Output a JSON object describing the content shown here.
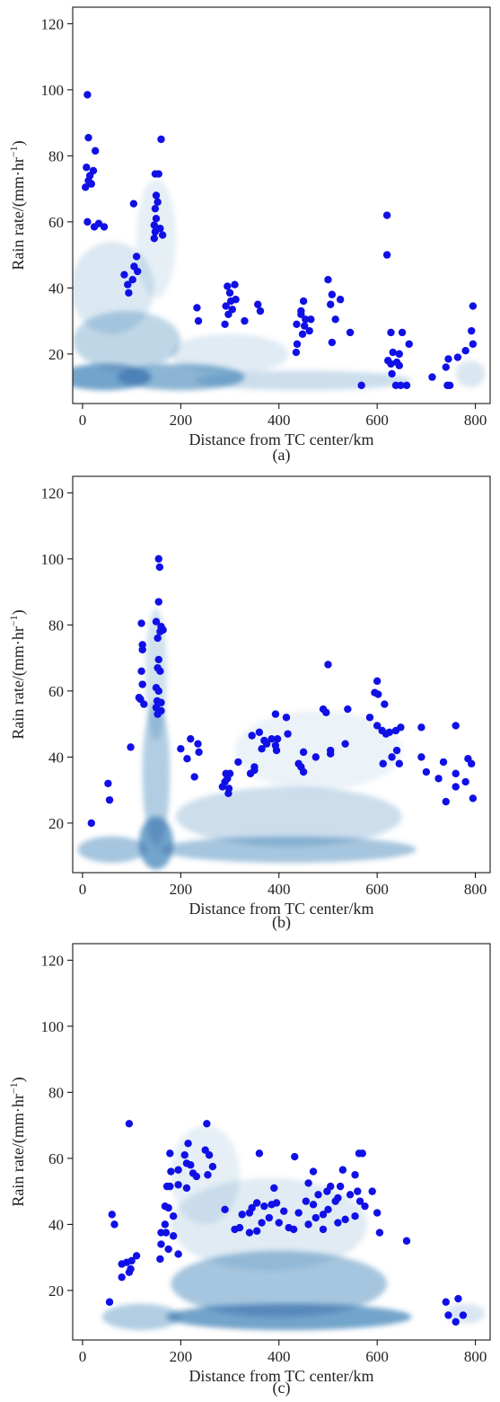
{
  "chart_data": [
    {
      "type": "scatter",
      "panel_label": "(a)",
      "xlabel": "Distance from TC center/km",
      "ylabel_main": "Rain rate/(mm·hr",
      "ylabel_sup": "−1",
      "ylabel_end": ")",
      "xlim": [
        -20,
        830
      ],
      "ylim": [
        5,
        125
      ],
      "xticks": [
        0,
        200,
        400,
        600,
        800
      ],
      "yticks": [
        20,
        40,
        60,
        80,
        100,
        120
      ],
      "grid": false,
      "legend": "none",
      "point_color": "#1010e6",
      "density_color": "#0b5aa0",
      "density": [
        {
          "x": 45,
          "y": 13,
          "sx": 95,
          "sy": 4,
          "a": 0.55
        },
        {
          "x": 200,
          "y": 13,
          "sx": 130,
          "sy": 4,
          "a": 0.45
        },
        {
          "x": 450,
          "y": 12,
          "sx": 220,
          "sy": 3,
          "a": 0.2
        },
        {
          "x": 90,
          "y": 24,
          "sx": 110,
          "sy": 9,
          "a": 0.25
        },
        {
          "x": 60,
          "y": 40,
          "sx": 85,
          "sy": 14,
          "a": 0.14
        },
        {
          "x": 150,
          "y": 55,
          "sx": 40,
          "sy": 18,
          "a": 0.1
        },
        {
          "x": 300,
          "y": 20,
          "sx": 120,
          "sy": 6,
          "a": 0.12
        },
        {
          "x": 790,
          "y": 14,
          "sx": 30,
          "sy": 4,
          "a": 0.15
        }
      ],
      "points": [
        [
          10,
          98.5
        ],
        [
          12,
          85.5
        ],
        [
          26,
          81.5
        ],
        [
          8,
          76.5
        ],
        [
          22,
          75.5
        ],
        [
          15,
          74
        ],
        [
          12,
          72.5
        ],
        [
          18,
          71.5
        ],
        [
          6,
          70.5
        ],
        [
          10,
          60
        ],
        [
          33,
          59.5
        ],
        [
          24,
          58.5
        ],
        [
          44,
          58.5
        ],
        [
          160,
          85
        ],
        [
          148,
          74.5
        ],
        [
          155,
          74.5
        ],
        [
          150,
          68
        ],
        [
          153,
          66
        ],
        [
          148,
          64
        ],
        [
          150,
          61
        ],
        [
          146,
          59
        ],
        [
          158,
          58
        ],
        [
          148,
          57
        ],
        [
          163,
          56
        ],
        [
          146,
          55
        ],
        [
          104,
          65.5
        ],
        [
          110,
          49.5
        ],
        [
          105,
          46.5
        ],
        [
          112,
          45
        ],
        [
          85,
          44
        ],
        [
          102,
          42.5
        ],
        [
          92,
          41
        ],
        [
          94,
          38.5
        ],
        [
          233,
          34
        ],
        [
          236,
          30
        ],
        [
          295,
          40.5
        ],
        [
          310,
          41
        ],
        [
          300,
          38.5
        ],
        [
          302,
          36
        ],
        [
          312,
          36.5
        ],
        [
          292,
          34.5
        ],
        [
          305,
          33.5
        ],
        [
          297,
          32
        ],
        [
          290,
          29
        ],
        [
          330,
          30
        ],
        [
          357,
          35
        ],
        [
          362,
          33
        ],
        [
          500,
          42.5
        ],
        [
          450,
          36
        ],
        [
          508,
          38
        ],
        [
          525,
          36.5
        ],
        [
          445,
          33
        ],
        [
          445,
          32
        ],
        [
          454,
          30.5
        ],
        [
          465,
          30.5
        ],
        [
          436,
          29
        ],
        [
          505,
          35
        ],
        [
          515,
          30.5
        ],
        [
          452,
          28.5
        ],
        [
          462,
          27
        ],
        [
          545,
          26.5
        ],
        [
          448,
          26
        ],
        [
          437,
          23
        ],
        [
          508,
          23.5
        ],
        [
          435,
          20.5
        ],
        [
          620,
          62
        ],
        [
          620,
          50
        ],
        [
          628,
          26.5
        ],
        [
          651,
          26.5
        ],
        [
          665,
          23
        ],
        [
          632,
          20.5
        ],
        [
          645,
          20
        ],
        [
          622,
          18
        ],
        [
          640,
          17.5
        ],
        [
          628,
          17
        ],
        [
          645,
          16.5
        ],
        [
          630,
          14
        ],
        [
          568,
          10.5
        ],
        [
          638,
          10.5
        ],
        [
          648,
          10.5
        ],
        [
          660,
          10.5
        ],
        [
          795,
          34.5
        ],
        [
          792,
          27
        ],
        [
          795,
          23
        ],
        [
          780,
          21
        ],
        [
          764,
          19
        ],
        [
          745,
          18.5
        ],
        [
          740,
          16
        ],
        [
          712,
          13
        ],
        [
          748,
          10.5
        ],
        [
          743,
          10.5
        ]
      ]
    },
    {
      "type": "scatter",
      "panel_label": "(b)",
      "xlabel": "Distance from TC center/km",
      "ylabel_main": "Rain rate/(mm·hr",
      "ylabel_sup": "−1",
      "ylabel_end": ")",
      "xlim": [
        -20,
        830
      ],
      "ylim": [
        5,
        125
      ],
      "xticks": [
        0,
        200,
        400,
        600,
        800
      ],
      "yticks": [
        20,
        40,
        60,
        80,
        100,
        120
      ],
      "grid": false,
      "legend": "none",
      "point_color": "#1010e6",
      "density_color": "#0b5aa0",
      "density": [
        {
          "x": 150,
          "y": 14,
          "sx": 35,
          "sy": 8,
          "a": 0.55
        },
        {
          "x": 150,
          "y": 35,
          "sx": 28,
          "sy": 22,
          "a": 0.3
        },
        {
          "x": 150,
          "y": 65,
          "sx": 22,
          "sy": 20,
          "a": 0.18
        },
        {
          "x": 60,
          "y": 12,
          "sx": 70,
          "sy": 4,
          "a": 0.35
        },
        {
          "x": 420,
          "y": 12,
          "sx": 260,
          "sy": 4,
          "a": 0.35
        },
        {
          "x": 420,
          "y": 22,
          "sx": 230,
          "sy": 9,
          "a": 0.2
        },
        {
          "x": 480,
          "y": 42,
          "sx": 170,
          "sy": 12,
          "a": 0.08
        }
      ],
      "points": [
        [
          155,
          100
        ],
        [
          157,
          97.5
        ],
        [
          155,
          87
        ],
        [
          150,
          81
        ],
        [
          160,
          79.5
        ],
        [
          158,
          78
        ],
        [
          164,
          78.5
        ],
        [
          153,
          76
        ],
        [
          120,
          80.5
        ],
        [
          122,
          74
        ],
        [
          122,
          72.5
        ],
        [
          155,
          69.5
        ],
        [
          153,
          67
        ],
        [
          158,
          66
        ],
        [
          120,
          66
        ],
        [
          150,
          61
        ],
        [
          155,
          60
        ],
        [
          122,
          62
        ],
        [
          115,
          58
        ],
        [
          118,
          57.5
        ],
        [
          152,
          57
        ],
        [
          160,
          56.5
        ],
        [
          125,
          56
        ],
        [
          150,
          55
        ],
        [
          160,
          54
        ],
        [
          153,
          53
        ],
        [
          98,
          43
        ],
        [
          52,
          32
        ],
        [
          55,
          27
        ],
        [
          18,
          20
        ],
        [
          200,
          42.5
        ],
        [
          220,
          45.5
        ],
        [
          235,
          44
        ],
        [
          213,
          39.5
        ],
        [
          237,
          41.5
        ],
        [
          228,
          34
        ],
        [
          292,
          35
        ],
        [
          295,
          33.5
        ],
        [
          300,
          35
        ],
        [
          290,
          32.5
        ],
        [
          285,
          31
        ],
        [
          298,
          30.5
        ],
        [
          297,
          29
        ],
        [
          317,
          38.5
        ],
        [
          345,
          46.5
        ],
        [
          360,
          47.5
        ],
        [
          385,
          45.5
        ],
        [
          370,
          45
        ],
        [
          393,
          53
        ],
        [
          397,
          45.5
        ],
        [
          375,
          44
        ],
        [
          393,
          43.5
        ],
        [
          365,
          42.5
        ],
        [
          395,
          42
        ],
        [
          350,
          37
        ],
        [
          350,
          36
        ],
        [
          342,
          35
        ],
        [
          415,
          52
        ],
        [
          418,
          47
        ],
        [
          440,
          38
        ],
        [
          450,
          41.5
        ],
        [
          445,
          37
        ],
        [
          450,
          35.5
        ],
        [
          500,
          68
        ],
        [
          490,
          54.5
        ],
        [
          496,
          53.5
        ],
        [
          540,
          54.5
        ],
        [
          475,
          40
        ],
        [
          505,
          42
        ],
        [
          505,
          41
        ],
        [
          535,
          44
        ],
        [
          600,
          63
        ],
        [
          595,
          59.5
        ],
        [
          602,
          59
        ],
        [
          615,
          56
        ],
        [
          585,
          52
        ],
        [
          600,
          49.5
        ],
        [
          610,
          48
        ],
        [
          618,
          47
        ],
        [
          625,
          47.5
        ],
        [
          638,
          48
        ],
        [
          648,
          49
        ],
        [
          640,
          42
        ],
        [
          630,
          40
        ],
        [
          612,
          38
        ],
        [
          645,
          38
        ],
        [
          690,
          49
        ],
        [
          760,
          49.5
        ],
        [
          690,
          40
        ],
        [
          700,
          35.5
        ],
        [
          725,
          33.5
        ],
        [
          760,
          35
        ],
        [
          735,
          38.5
        ],
        [
          785,
          39.5
        ],
        [
          792,
          38
        ],
        [
          780,
          32.5
        ],
        [
          760,
          31
        ],
        [
          740,
          26.5
        ],
        [
          795,
          27.5
        ]
      ]
    },
    {
      "type": "scatter",
      "panel_label": "(c)",
      "xlabel": "Distance from TC center/km",
      "ylabel_main": "Rain rate/(mm·hr",
      "ylabel_sup": "−1",
      "ylabel_end": ")",
      "xlim": [
        -20,
        830
      ],
      "ylim": [
        5,
        125
      ],
      "xticks": [
        0,
        200,
        400,
        600,
        800
      ],
      "yticks": [
        20,
        40,
        60,
        80,
        100,
        120
      ],
      "grid": false,
      "legend": "none",
      "point_color": "#1010e6",
      "density_color": "#0b5aa0",
      "density": [
        {
          "x": 420,
          "y": 12,
          "sx": 250,
          "sy": 4,
          "a": 0.55
        },
        {
          "x": 400,
          "y": 22,
          "sx": 220,
          "sy": 10,
          "a": 0.35
        },
        {
          "x": 120,
          "y": 12,
          "sx": 80,
          "sy": 4,
          "a": 0.3
        },
        {
          "x": 380,
          "y": 40,
          "sx": 200,
          "sy": 14,
          "a": 0.12
        },
        {
          "x": 250,
          "y": 55,
          "sx": 70,
          "sy": 15,
          "a": 0.1
        },
        {
          "x": 780,
          "y": 13,
          "sx": 40,
          "sy": 3,
          "a": 0.15
        }
      ],
      "points": [
        [
          95,
          70.5
        ],
        [
          253,
          70.5
        ],
        [
          215,
          64.5
        ],
        [
          178,
          61.5
        ],
        [
          250,
          62.5
        ],
        [
          258,
          61
        ],
        [
          208,
          61
        ],
        [
          360,
          61.5
        ],
        [
          432,
          60.5
        ],
        [
          563,
          61.5
        ],
        [
          570,
          61.5
        ],
        [
          212,
          58.5
        ],
        [
          220,
          58
        ],
        [
          265,
          57.5
        ],
        [
          195,
          56.5
        ],
        [
          180,
          56
        ],
        [
          225,
          55.5
        ],
        [
          255,
          55
        ],
        [
          232,
          54.5
        ],
        [
          470,
          56
        ],
        [
          530,
          56.5
        ],
        [
          555,
          55
        ],
        [
          195,
          52
        ],
        [
          178,
          51.5
        ],
        [
          172,
          51.5
        ],
        [
          212,
          51
        ],
        [
          390,
          51
        ],
        [
          460,
          52.5
        ],
        [
          505,
          51.5
        ],
        [
          525,
          51.5
        ],
        [
          498,
          50
        ],
        [
          560,
          50
        ],
        [
          590,
          50
        ],
        [
          545,
          49
        ],
        [
          480,
          49
        ],
        [
          290,
          44.5
        ],
        [
          325,
          43
        ],
        [
          340,
          43.5
        ],
        [
          345,
          45
        ],
        [
          355,
          46.5
        ],
        [
          370,
          45.5
        ],
        [
          385,
          46
        ],
        [
          395,
          46.5
        ],
        [
          410,
          44
        ],
        [
          440,
          43.5
        ],
        [
          455,
          47
        ],
        [
          470,
          46
        ],
        [
          515,
          47
        ],
        [
          520,
          48
        ],
        [
          565,
          47
        ],
        [
          575,
          45.5
        ],
        [
          600,
          43.5
        ],
        [
          555,
          42.5
        ],
        [
          535,
          41.5
        ],
        [
          520,
          40.5
        ],
        [
          500,
          44.5
        ],
        [
          490,
          43
        ],
        [
          475,
          42
        ],
        [
          460,
          40
        ],
        [
          420,
          39
        ],
        [
          400,
          40.5
        ],
        [
          380,
          42
        ],
        [
          365,
          40.5
        ],
        [
          355,
          38
        ],
        [
          340,
          37.5
        ],
        [
          320,
          39
        ],
        [
          310,
          38.5
        ],
        [
          430,
          38.5
        ],
        [
          490,
          38.5
        ],
        [
          605,
          37.5
        ],
        [
          660,
          35
        ],
        [
          185,
          42.5
        ],
        [
          168,
          45.5
        ],
        [
          175,
          45
        ],
        [
          160,
          37.5
        ],
        [
          170,
          37.5
        ],
        [
          185,
          36.5
        ],
        [
          168,
          40
        ],
        [
          160,
          34
        ],
        [
          175,
          32.5
        ],
        [
          195,
          31
        ],
        [
          158,
          29.5
        ],
        [
          60,
          43
        ],
        [
          65,
          40
        ],
        [
          80,
          28
        ],
        [
          90,
          28.5
        ],
        [
          110,
          30.5
        ],
        [
          100,
          29
        ],
        [
          98,
          26.5
        ],
        [
          95,
          25.5
        ],
        [
          80,
          24
        ],
        [
          55,
          16.5
        ],
        [
          740,
          16.5
        ],
        [
          765,
          17.5
        ],
        [
          775,
          12.5
        ],
        [
          745,
          12.5
        ],
        [
          760,
          10.5
        ]
      ]
    }
  ]
}
